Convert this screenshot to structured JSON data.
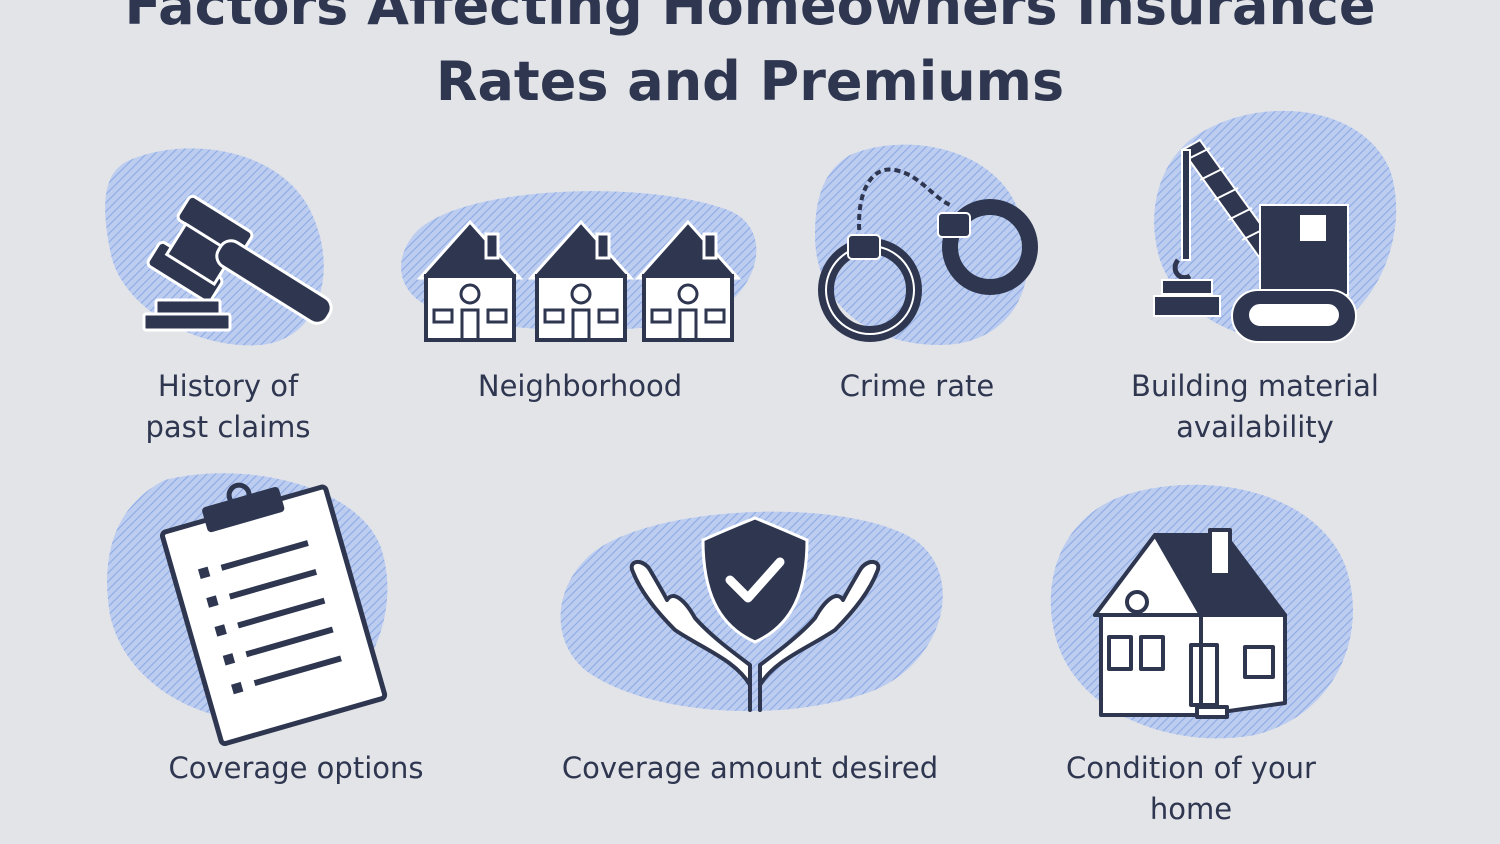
{
  "title": {
    "line1": "Factors Affecting Homeowners Insurance",
    "line2": "Rates and Premiums"
  },
  "colors": {
    "background": "#e3e4e8",
    "navy": "#2e3650",
    "blob": "#a9c0ec"
  },
  "factors": [
    {
      "icon": "gavel-icon",
      "label_line1": "History of",
      "label_line2": "past claims"
    },
    {
      "icon": "houses-icon",
      "label_line1": "Neighborhood",
      "label_line2": ""
    },
    {
      "icon": "handcuffs-icon",
      "label_line1": "Crime rate",
      "label_line2": ""
    },
    {
      "icon": "crane-icon",
      "label_line1": "Building material",
      "label_line2": "availability"
    },
    {
      "icon": "clipboard-icon",
      "label_line1": "Coverage options",
      "label_line2": ""
    },
    {
      "icon": "hands-shield-icon",
      "label_line1": "Coverage amount desired",
      "label_line2": ""
    },
    {
      "icon": "house-icon",
      "label_line1": "Condition of your home",
      "label_line2": ""
    }
  ]
}
